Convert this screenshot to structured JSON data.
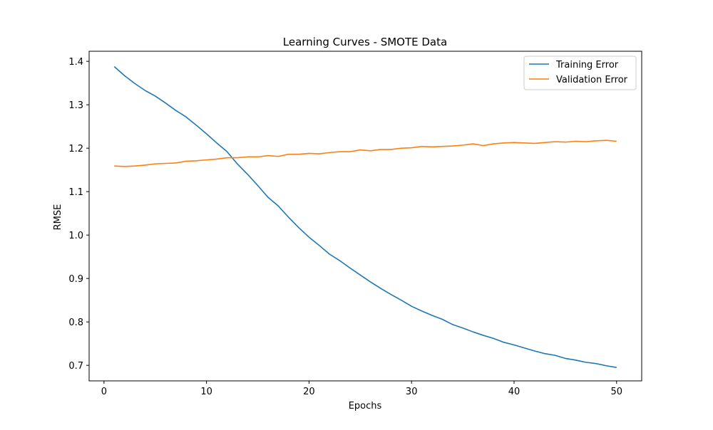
{
  "chart_data": {
    "type": "line",
    "title": "Learning Curves - SMOTE Data",
    "xlabel": "Epochs",
    "ylabel": "RMSE",
    "xlim": [
      -1.45,
      52.45
    ],
    "ylim": [
      0.6642,
      1.4232
    ],
    "xticks": [
      0,
      10,
      20,
      30,
      40,
      50
    ],
    "yticks": [
      0.7,
      0.8,
      0.9,
      1.0,
      1.1,
      1.2,
      1.3,
      1.4
    ],
    "xtick_labels": [
      "0",
      "10",
      "20",
      "30",
      "40",
      "50"
    ],
    "ytick_labels": [
      "0.7",
      "0.8",
      "0.9",
      "1.0",
      "1.1",
      "1.2",
      "1.3",
      "1.4"
    ],
    "grid": false,
    "legend_position": "top-right",
    "x": [
      1,
      2,
      3,
      4,
      5,
      6,
      7,
      8,
      9,
      10,
      11,
      12,
      13,
      14,
      15,
      16,
      17,
      18,
      19,
      20,
      21,
      22,
      23,
      24,
      25,
      26,
      27,
      28,
      29,
      30,
      31,
      32,
      33,
      34,
      35,
      36,
      37,
      38,
      39,
      40,
      41,
      42,
      43,
      44,
      45,
      46,
      47,
      48,
      49,
      50
    ],
    "series": [
      {
        "name": "Training Error",
        "color": "#1f77b4",
        "values": [
          1.388,
          1.367,
          1.349,
          1.333,
          1.32,
          1.304,
          1.287,
          1.272,
          1.253,
          1.233,
          1.212,
          1.192,
          1.164,
          1.14,
          1.114,
          1.087,
          1.067,
          1.041,
          1.017,
          0.995,
          0.976,
          0.956,
          0.941,
          0.924,
          0.908,
          0.892,
          0.877,
          0.863,
          0.85,
          0.836,
          0.825,
          0.815,
          0.806,
          0.794,
          0.786,
          0.777,
          0.769,
          0.762,
          0.753,
          0.747,
          0.74,
          0.733,
          0.727,
          0.723,
          0.716,
          0.712,
          0.707,
          0.704,
          0.699,
          0.695
        ]
      },
      {
        "name": "Validation Error",
        "color": "#ff7f0e",
        "values": [
          1.159,
          1.158,
          1.159,
          1.161,
          1.164,
          1.165,
          1.166,
          1.17,
          1.171,
          1.173,
          1.175,
          1.178,
          1.178,
          1.18,
          1.18,
          1.183,
          1.181,
          1.186,
          1.186,
          1.188,
          1.187,
          1.19,
          1.192,
          1.192,
          1.196,
          1.194,
          1.197,
          1.197,
          1.2,
          1.201,
          1.204,
          1.203,
          1.204,
          1.205,
          1.207,
          1.21,
          1.206,
          1.21,
          1.212,
          1.213,
          1.212,
          1.211,
          1.213,
          1.215,
          1.214,
          1.216,
          1.215,
          1.217,
          1.218,
          1.216
        ]
      }
    ]
  }
}
